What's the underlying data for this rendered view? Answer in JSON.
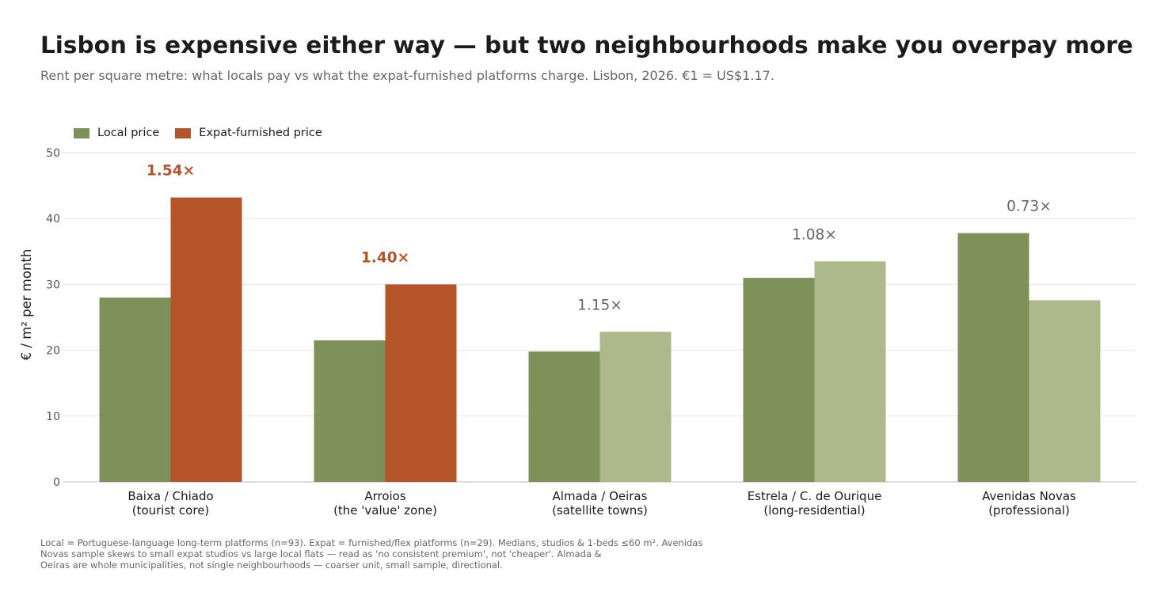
{
  "title": "Lisbon is expensive either way — but two neighbourhoods make you overpay more",
  "subtitle": "Rent per square metre: what locals pay vs what the expat-furnished platforms charge. Lisbon, 2026. €1 = US$1.17.",
  "footnote": [
    "Local = Portuguese-language long-term platforms (n=93). Expat = furnished/flex platforms (n=29). Medians, studios & 1-beds ≤60 m². Avenidas",
    "Novas sample skews to small expat studios vs large local flats — read as 'no consistent premium', not 'cheaper'. Almada &",
    "Oeiras are whole municipalities, not single neighbourhoods — coarser unit, small sample, directional."
  ],
  "colors": {
    "local": "#7e9159",
    "expat_highlight": "#b55329",
    "expat_muted": "#adb98b",
    "ratio_muted": "#666666",
    "grid": "#e6e6e6",
    "axis": "#cccccc"
  },
  "chart_data": {
    "type": "bar",
    "ylabel": "€ / m² per month",
    "xlabel": "",
    "ylim": [
      0,
      50
    ],
    "yticks": [
      0,
      10,
      20,
      30,
      40,
      50
    ],
    "grid": true,
    "legend_position": "top-left",
    "categories": [
      [
        "Baixa / Chiado",
        "(tourist core)"
      ],
      [
        "Arroios",
        "(the 'value' zone)"
      ],
      [
        "Almada / Oeiras",
        "(satellite towns)"
      ],
      [
        "Estrela / C. de Ourique",
        "(long-residential)"
      ],
      [
        "Avenidas Novas",
        "(professional)"
      ]
    ],
    "series": [
      {
        "name": "Local price",
        "values": [
          28.0,
          21.5,
          19.8,
          31.0,
          37.8
        ]
      },
      {
        "name": "Expat-furnished price",
        "values": [
          43.2,
          30.0,
          22.8,
          33.5,
          27.6
        ]
      }
    ],
    "ratios": [
      "1.54×",
      "1.40×",
      "1.15×",
      "1.08×",
      "0.73×"
    ],
    "highlighted": [
      true,
      true,
      false,
      false,
      false
    ]
  }
}
